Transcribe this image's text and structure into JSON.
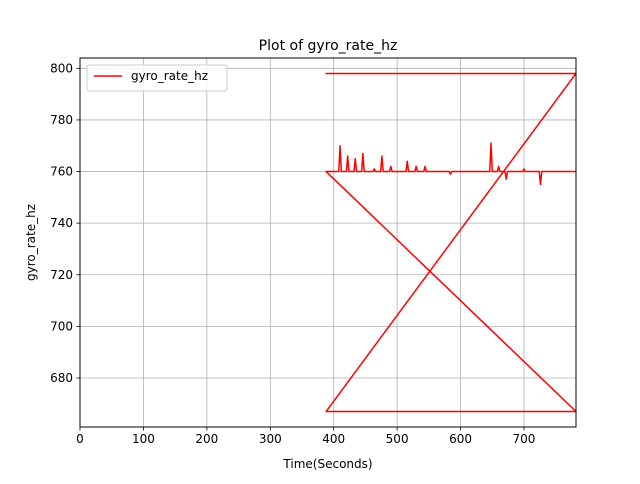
{
  "chart_data": {
    "type": "line",
    "title": "Plot of gyro_rate_hz",
    "xlabel": "Time(Seconds)",
    "ylabel": "gyro_rate_hz",
    "xlim": [
      0,
      782
    ],
    "ylim": [
      661,
      804
    ],
    "xticks": [
      0,
      100,
      200,
      300,
      400,
      500,
      600,
      700
    ],
    "yticks": [
      680,
      700,
      720,
      740,
      760,
      780,
      800
    ],
    "grid": true,
    "legend": "upper-left",
    "series": [
      {
        "name": "gyro_rate_hz",
        "color": "#ff0000",
        "points": [
          [
            782,
            798
          ],
          [
            388,
            798
          ],
          [
            782,
            798
          ],
          [
            388,
            667
          ],
          [
            782,
            667
          ],
          [
            388,
            760
          ],
          [
            408,
            760
          ],
          [
            410,
            770
          ],
          [
            412,
            760
          ],
          [
            420,
            760
          ],
          [
            422,
            766
          ],
          [
            424,
            760
          ],
          [
            432,
            760
          ],
          [
            434,
            765
          ],
          [
            436,
            760
          ],
          [
            444,
            760
          ],
          [
            446,
            767
          ],
          [
            448,
            760
          ],
          [
            462,
            760
          ],
          [
            464,
            761
          ],
          [
            466,
            760
          ],
          [
            474,
            760
          ],
          [
            476,
            766
          ],
          [
            478,
            760
          ],
          [
            488,
            760
          ],
          [
            490,
            762
          ],
          [
            492,
            760
          ],
          [
            514,
            760
          ],
          [
            516,
            764
          ],
          [
            518,
            760
          ],
          [
            528,
            760
          ],
          [
            530,
            762
          ],
          [
            532,
            760
          ],
          [
            542,
            760
          ],
          [
            544,
            762
          ],
          [
            546,
            760
          ],
          [
            582,
            760
          ],
          [
            584,
            759
          ],
          [
            586,
            760
          ],
          [
            646,
            760
          ],
          [
            648,
            771
          ],
          [
            650,
            760
          ],
          [
            658,
            760
          ],
          [
            660,
            762
          ],
          [
            662,
            760
          ],
          [
            670,
            760
          ],
          [
            672,
            757
          ],
          [
            674,
            760
          ],
          [
            698,
            760
          ],
          [
            700,
            761
          ],
          [
            702,
            760
          ],
          [
            724,
            760
          ],
          [
            726,
            755
          ],
          [
            728,
            760
          ],
          [
            782,
            760
          ]
        ]
      }
    ]
  }
}
